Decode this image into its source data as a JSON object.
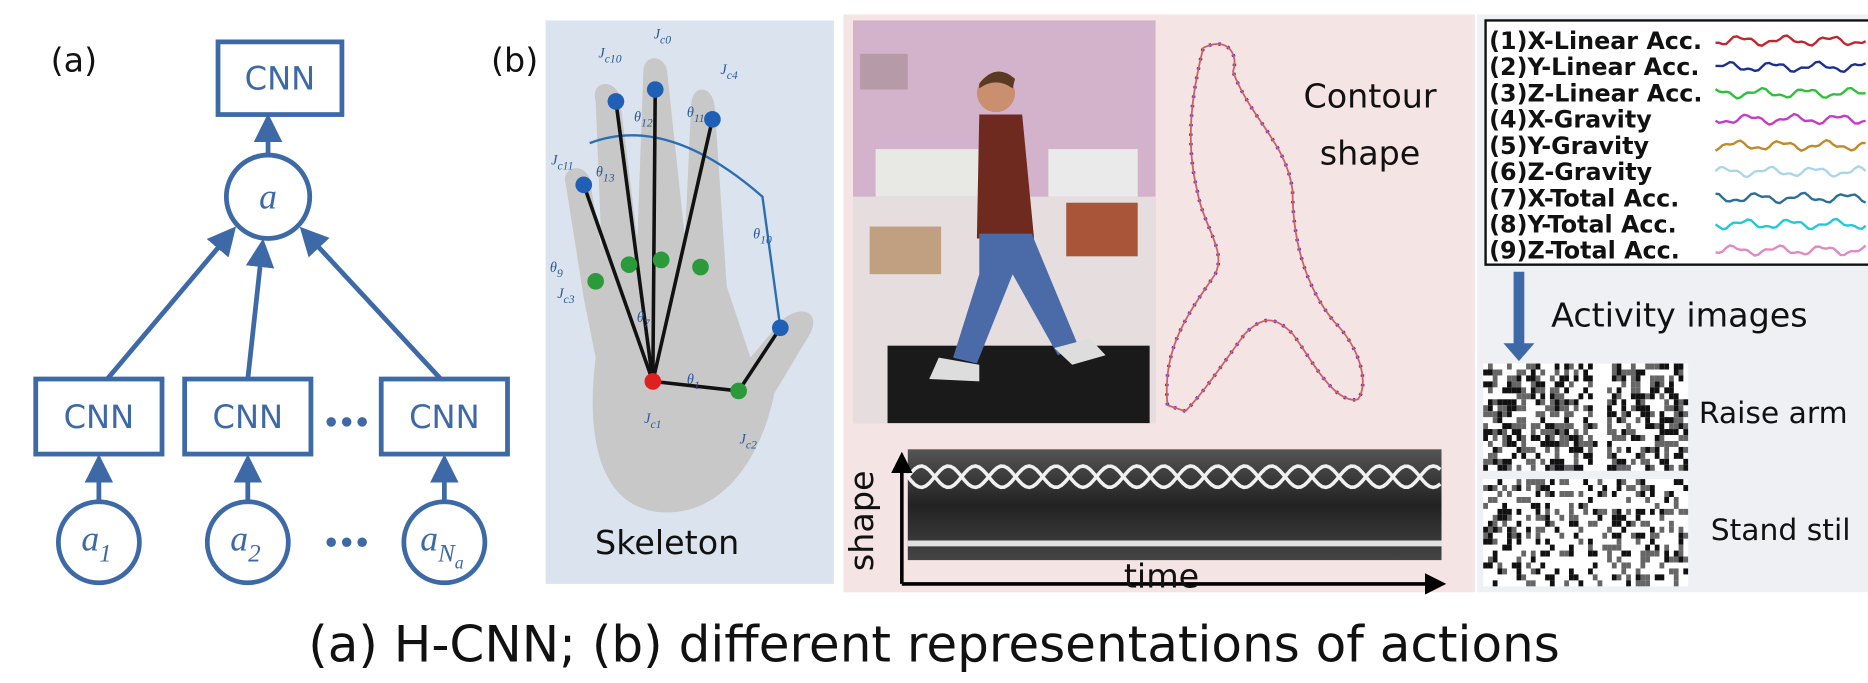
{
  "panel_a": {
    "label": "(a)",
    "top_cnn": "CNN",
    "aggregate_node": "a",
    "cnn_blocks": [
      "CNN",
      "CNN",
      "CNN"
    ],
    "input_nodes": [
      {
        "base": "a",
        "sub": "1"
      },
      {
        "base": "a",
        "sub": "2"
      },
      {
        "base": "a",
        "sub": "N",
        "subsub": "a"
      }
    ]
  },
  "panel_b": {
    "label": "(b)",
    "skeleton": {
      "caption": "Skeleton",
      "joint_labels": [
        {
          "base": "J",
          "sub": "c0"
        },
        {
          "base": "J",
          "sub": "c10"
        },
        {
          "base": "J",
          "sub": "c4"
        },
        {
          "base": "J",
          "sub": "c11"
        },
        {
          "base": "J",
          "sub": "c1"
        },
        {
          "base": "J",
          "sub": "c2"
        },
        {
          "base": "J",
          "sub": "c3"
        }
      ],
      "angle_labels": [
        {
          "base": "θ",
          "sub": "12"
        },
        {
          "base": "θ",
          "sub": "11"
        },
        {
          "base": "θ",
          "sub": "13"
        },
        {
          "base": "θ",
          "sub": "10"
        },
        {
          "base": "θ",
          "sub": "9"
        },
        {
          "base": "θ",
          "sub": "7"
        },
        {
          "base": "θ",
          "sub": "1"
        }
      ]
    },
    "contour": {
      "caption": [
        "Contour",
        "shape"
      ]
    },
    "spectrogram": {
      "y_label": "shape",
      "x_label": "time"
    },
    "sensors": {
      "channels": [
        {
          "name": "(1)X-Linear Acc.",
          "color": "#c0272d"
        },
        {
          "name": "(2)Y-Linear Acc.",
          "color": "#1b2f8f"
        },
        {
          "name": "(3)Z-Linear Acc.",
          "color": "#2fbf3a"
        },
        {
          "name": "(4)X-Gravity",
          "color": "#c43bc8"
        },
        {
          "name": "(5)Y-Gravity",
          "color": "#c08a2a"
        },
        {
          "name": "(6)Z-Gravity",
          "color": "#a9d6ea"
        },
        {
          "name": "(7)X-Total Acc.",
          "color": "#2a6f96"
        },
        {
          "name": "(8)Y-Total Acc.",
          "color": "#20c8d8"
        },
        {
          "name": "(9)Z-Total Acc.",
          "color": "#e08ac4"
        }
      ]
    },
    "activity": {
      "title": "Activity images",
      "examples": [
        "Raise arm",
        "Stand stil"
      ]
    }
  },
  "caption": "(a) H-CNN; (b) different representations of actions"
}
